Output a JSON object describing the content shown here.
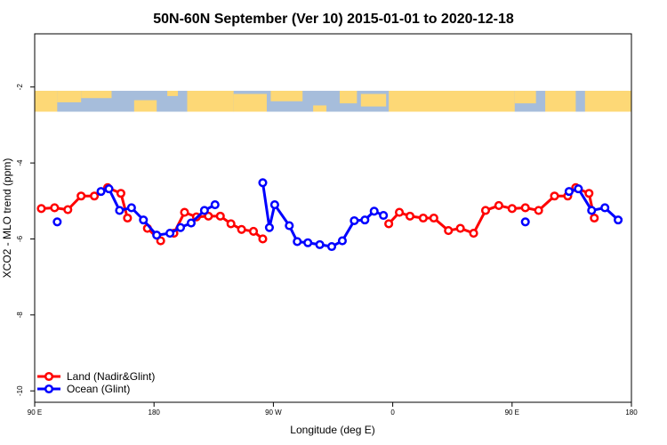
{
  "chart_data": {
    "type": "line",
    "title": "50N-60N September (Ver 10)   2015-01-01 to 2020-12-18",
    "xlabel": "Longitude (deg E)",
    "ylabel": "XCO2 - MLO trend (ppm)",
    "x_ticks": [
      {
        "value": 90,
        "label": "90 E"
      },
      {
        "value": 180,
        "label": "180"
      },
      {
        "value": 270,
        "label": "90 W"
      },
      {
        "value": 360,
        "label": "0"
      },
      {
        "value": 450,
        "label": "90 E"
      },
      {
        "value": 540,
        "label": "180"
      }
    ],
    "y_ticks": [
      {
        "value": -2,
        "label": "-2"
      },
      {
        "value": -4,
        "label": "-4"
      },
      {
        "value": -6,
        "label": "-6"
      },
      {
        "value": -8,
        "label": "-8"
      },
      {
        "value": -10,
        "label": "-10"
      }
    ],
    "xlim": [
      90,
      540
    ],
    "ylim": [
      -10.3,
      -0.6
    ],
    "map_band": {
      "ymin": -2.65,
      "ymax": -2.1,
      "ocean_color": "#a6bddb",
      "land_color": "#fdd876"
    },
    "colors": {
      "land": "#ff0000",
      "ocean": "#0000ff"
    },
    "legend": {
      "position": "bottom-left",
      "entries": [
        "Land (Nadir&Glint)",
        "Ocean (Glint)"
      ]
    },
    "series": [
      {
        "name": "Land (Nadir&Glint)",
        "color": "#ff0000",
        "segments": [
          [
            [
              95,
              -5.2
            ],
            [
              105,
              -5.18
            ],
            [
              115,
              -5.23
            ],
            [
              125,
              -4.87
            ],
            [
              135,
              -4.87
            ],
            [
              145,
              -4.65
            ],
            [
              155,
              -4.8
            ],
            [
              160,
              -5.45
            ]
          ],
          [
            [
              175,
              -5.72
            ],
            [
              185,
              -6.05
            ]
          ],
          [
            [
              195,
              -5.85
            ],
            [
              203,
              -5.3
            ],
            [
              212,
              -5.42
            ],
            [
              221,
              -5.4
            ],
            [
              230,
              -5.4
            ],
            [
              238,
              -5.6
            ],
            [
              246,
              -5.75
            ],
            [
              255,
              -5.8
            ],
            [
              262,
              -6.0
            ]
          ],
          [
            [
              357,
              -5.6
            ],
            [
              365,
              -5.3
            ],
            [
              373,
              -5.4
            ],
            [
              383,
              -5.45
            ],
            [
              391,
              -5.45
            ],
            [
              402,
              -5.78
            ],
            [
              411,
              -5.72
            ],
            [
              421,
              -5.85
            ],
            [
              430,
              -5.25
            ],
            [
              440,
              -5.12
            ],
            [
              450,
              -5.2
            ],
            [
              460,
              -5.18
            ],
            [
              470,
              -5.25
            ],
            [
              482,
              -4.87
            ],
            [
              492,
              -4.87
            ],
            [
              498,
              -4.65
            ],
            [
              508,
              -4.8
            ],
            [
              512,
              -5.45
            ]
          ]
        ]
      },
      {
        "name": "Ocean (Glint)",
        "color": "#0000ff",
        "segments": [
          [
            [
              107,
              -5.55
            ]
          ],
          [
            [
              140,
              -4.75
            ],
            [
              146,
              -4.68
            ],
            [
              154,
              -5.25
            ],
            [
              163,
              -5.18
            ],
            [
              172,
              -5.5
            ],
            [
              182,
              -5.9
            ],
            [
              192,
              -5.85
            ],
            [
              200,
              -5.7
            ],
            [
              208,
              -5.58
            ],
            [
              218,
              -5.25
            ],
            [
              226,
              -5.1
            ]
          ],
          [
            [
              262,
              -4.52
            ],
            [
              267,
              -5.7
            ],
            [
              271,
              -5.1
            ],
            [
              282,
              -5.65
            ],
            [
              288,
              -6.07
            ],
            [
              296,
              -6.1
            ],
            [
              305,
              -6.15
            ],
            [
              314,
              -6.2
            ],
            [
              322,
              -6.05
            ],
            [
              331,
              -5.52
            ],
            [
              339,
              -5.5
            ],
            [
              346,
              -5.27
            ],
            [
              353,
              -5.38
            ]
          ],
          [
            [
              460,
              -5.55
            ]
          ],
          [
            [
              493,
              -4.75
            ],
            [
              500,
              -4.68
            ],
            [
              510,
              -5.25
            ],
            [
              520,
              -5.18
            ],
            [
              530,
              -5.5
            ]
          ]
        ]
      }
    ]
  }
}
